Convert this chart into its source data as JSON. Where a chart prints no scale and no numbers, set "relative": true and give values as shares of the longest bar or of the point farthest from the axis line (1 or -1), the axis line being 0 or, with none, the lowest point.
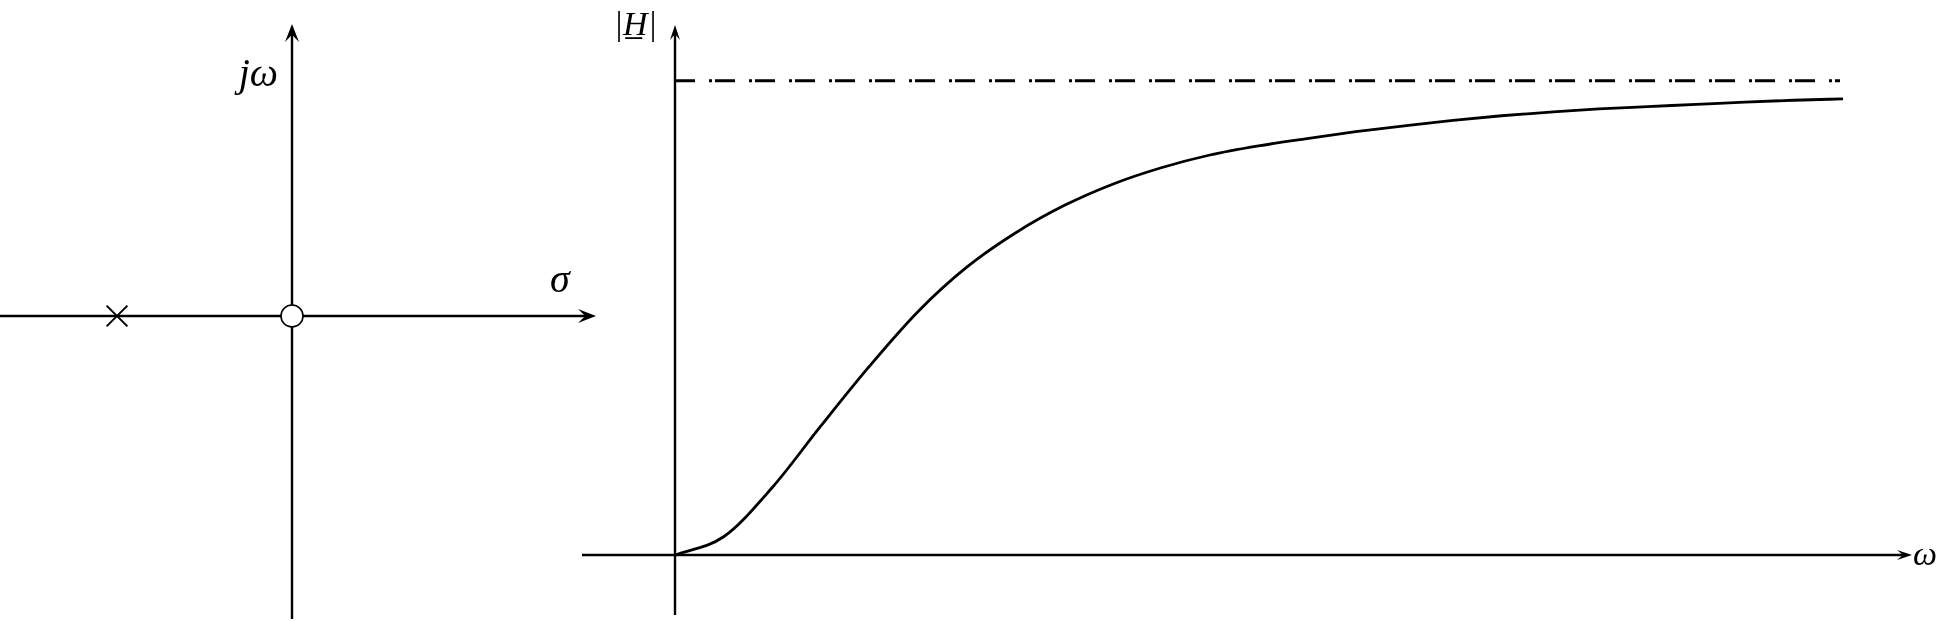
{
  "chart_data": [
    {
      "type": "other",
      "xlabel": "σ",
      "ylabel": "jω"
    },
    {
      "type": "line",
      "relative": true,
      "xlabel": "ω",
      "ylabel": "|H̲|",
      "marker": "none",
      "categories": [
        null,
        null,
        null,
        null,
        null,
        null,
        null,
        null,
        null,
        null,
        null,
        null,
        null,
        null,
        null,
        null,
        null,
        null,
        null,
        null,
        null,
        null,
        null,
        null,
        null
      ],
      "series": [
        {
          "color": "#000000",
          "values": [
            0,
            0.04,
            0.148,
            0.283,
            0.414,
            0.534,
            0.631,
            0.706,
            0.766,
            0.813,
            0.849,
            0.877,
            0.897,
            0.913,
            0.928,
            0.941,
            0.953,
            0.963,
            0.971,
            0.978,
            0.983,
            0.988,
            0.993,
            0.997,
            1
          ]
        }
      ],
      "ref_lines": [
        {
          "axis": "y",
          "value": 1.04,
          "color": "#000000",
          "line_style": "dashdot"
        }
      ]
    }
  ]
}
